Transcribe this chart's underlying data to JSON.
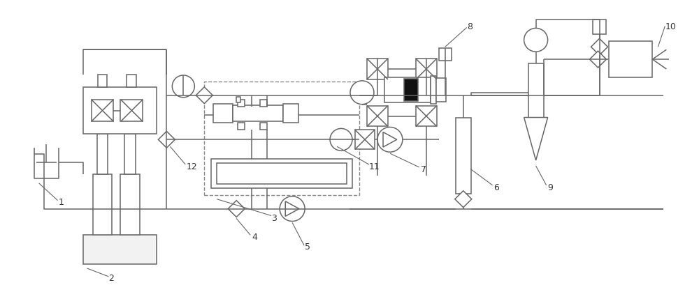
{
  "bg_color": "#ffffff",
  "line_color": "#666666",
  "lw": 1.1,
  "fig_width": 10.0,
  "fig_height": 4.1,
  "dpi": 100
}
